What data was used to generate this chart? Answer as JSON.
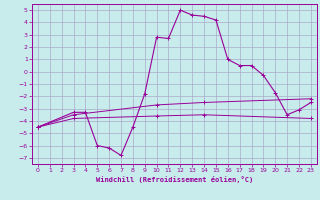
{
  "title": "",
  "xlabel": "Windchill (Refroidissement éolien,°C)",
  "background_color": "#c8ecec",
  "line_color": "#990099",
  "xlim": [
    -0.5,
    23.5
  ],
  "ylim": [
    -7.5,
    5.5
  ],
  "xticks": [
    0,
    1,
    2,
    3,
    4,
    5,
    6,
    7,
    8,
    9,
    10,
    11,
    12,
    13,
    14,
    15,
    16,
    17,
    18,
    19,
    20,
    21,
    22,
    23
  ],
  "yticks": [
    -7,
    -6,
    -5,
    -4,
    -3,
    -2,
    -1,
    0,
    1,
    2,
    3,
    4,
    5
  ],
  "series1_x": [
    0,
    3,
    4,
    5,
    6,
    7,
    8,
    9,
    10,
    11,
    12,
    13,
    14,
    15,
    16,
    17,
    18,
    19,
    20,
    21,
    22,
    23
  ],
  "series1_y": [
    -4.5,
    -3.3,
    -3.3,
    -6.0,
    -6.2,
    -6.8,
    -4.5,
    -1.8,
    2.8,
    2.7,
    5.0,
    4.6,
    4.5,
    4.2,
    1.0,
    0.5,
    0.5,
    -0.3,
    -1.7,
    -3.5,
    -3.1,
    -2.5
  ],
  "series2_x": [
    0,
    3,
    10,
    14,
    23
  ],
  "series2_y": [
    -4.5,
    -3.8,
    -3.6,
    -3.5,
    -3.8
  ],
  "series3_x": [
    0,
    3,
    10,
    14,
    23
  ],
  "series3_y": [
    -4.5,
    -3.5,
    -2.7,
    -2.5,
    -2.2
  ],
  "grid_color": "#aaaacc",
  "font_color": "#990099"
}
